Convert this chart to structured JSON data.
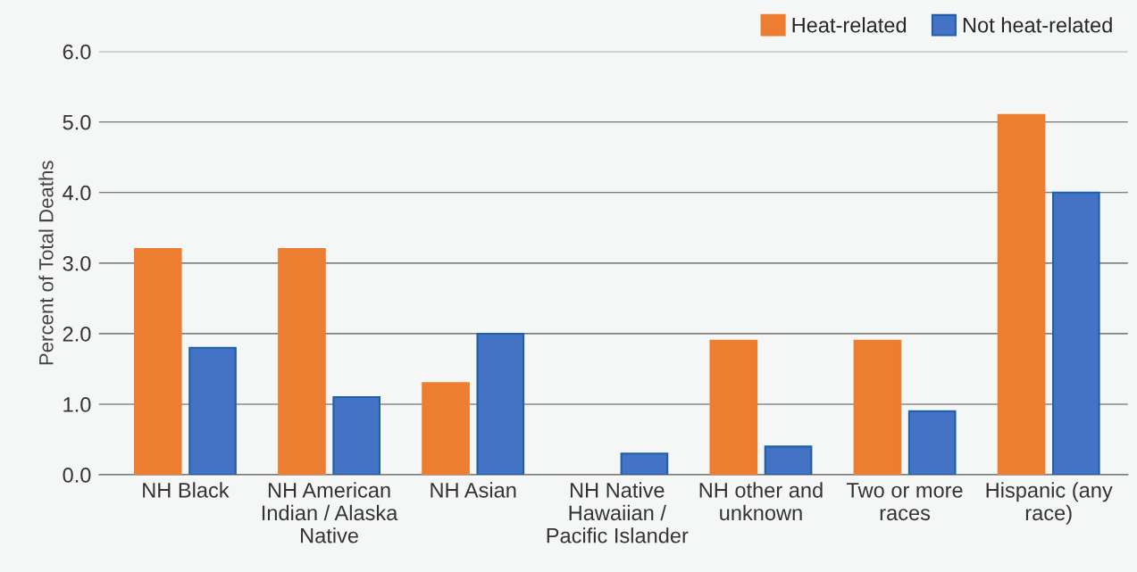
{
  "chart_data": {
    "type": "bar",
    "ylabel": "Percent of Total Deaths",
    "categories": [
      "NH Black",
      "NH American\nIndian / Alaska\nNative",
      "NH Asian",
      "NH Native\nHawaiian /\nPacific Islander",
      "NH other and\nunknown",
      "Two or more\nraces",
      "Hispanic (any\nrace)"
    ],
    "series": [
      {
        "name": "Heat-related",
        "color": "#ed7d31",
        "values": [
          3.2,
          3.2,
          1.3,
          null,
          1.9,
          1.9,
          5.1
        ]
      },
      {
        "name": "Not heat-related",
        "color": "#4472c4",
        "values": [
          1.8,
          1.1,
          2.0,
          0.3,
          0.4,
          0.9,
          4.0
        ]
      }
    ],
    "ylim": [
      0,
      6
    ],
    "yticks": [
      {
        "value": 0,
        "label": "0.0"
      },
      {
        "value": 1,
        "label": "1.0"
      },
      {
        "value": 2,
        "label": "2.0"
      },
      {
        "value": 3,
        "label": "3.0"
      },
      {
        "value": 4,
        "label": "4.0"
      },
      {
        "value": 5,
        "label": "5.0"
      },
      {
        "value": 6,
        "label": "6.0"
      }
    ],
    "grid": "y",
    "legend": "top right"
  }
}
